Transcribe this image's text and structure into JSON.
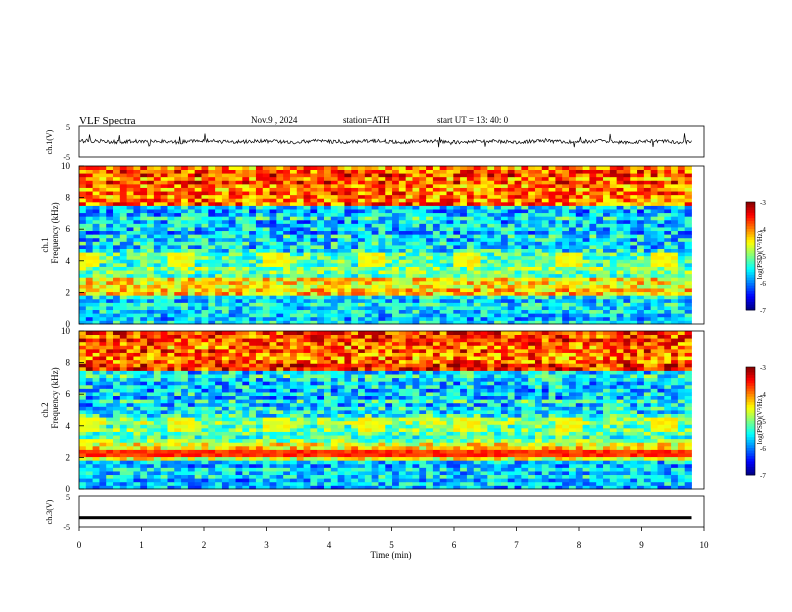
{
  "header": {
    "title": "VLF  Spectra",
    "date": "Nov.9  , 2024",
    "station": "station=ATH",
    "start": "start  UT  =   13: 40: 0"
  },
  "chart_data": [
    {
      "type": "line",
      "name": "ch1_waveform",
      "ylabel": "ch.1(V)",
      "ylim": [
        -5,
        5
      ],
      "yticks": [
        "5",
        "-5"
      ],
      "xlim": [
        0,
        10
      ],
      "baseline": 0
    },
    {
      "type": "heatmap",
      "name": "ch1_spectrogram",
      "ylabel": "ch.1\nFrequency  (kHz)",
      "ylabel_lines": [
        "ch.1",
        "Frequency  (kHz)"
      ],
      "xlim": [
        0,
        10
      ],
      "ylim": [
        0,
        10
      ],
      "yticks": [
        "0",
        "2",
        "4",
        "6",
        "8",
        "10"
      ],
      "colorbar": {
        "label": "log(PSD)(V²/Hz)",
        "range": [
          -7,
          -3
        ],
        "ticks": [
          "-3",
          "-4",
          "-5",
          "-6",
          "-7"
        ]
      },
      "blobs_min": [
        0.15,
        1.6,
        3.2,
        4.7,
        6.25,
        7.8,
        9.35
      ],
      "blob_freq_khz": 4
    },
    {
      "type": "heatmap",
      "name": "ch2_spectrogram",
      "ylabel": "ch.2\nFrequency  (kHz)",
      "ylabel_lines": [
        "ch.2",
        "Frequency  (kHz)"
      ],
      "xlim": [
        0,
        10
      ],
      "ylim": [
        0,
        10
      ],
      "yticks": [
        "0",
        "2",
        "4",
        "6",
        "8",
        "10"
      ],
      "colorbar": {
        "label": "log(PSD)(V²/Hz)",
        "range": [
          -7,
          -3
        ],
        "ticks": [
          "-3",
          "-4",
          "-5",
          "-6",
          "-7"
        ]
      },
      "blobs_min": [
        0.15,
        1.6,
        3.2,
        4.7,
        6.25,
        7.8,
        9.35
      ],
      "blob_freq_khz": 4
    },
    {
      "type": "line",
      "name": "ch3_waveform",
      "ylabel": "ch.3(V)",
      "ylim": [
        -5,
        5
      ],
      "yticks": [
        "5",
        "-5"
      ],
      "xlim": [
        0,
        10
      ],
      "baseline": -2,
      "xlabel": "Time  (min)",
      "xticks": [
        "0",
        "1",
        "2",
        "3",
        "4",
        "5",
        "6",
        "7",
        "8",
        "9",
        "10"
      ]
    }
  ]
}
